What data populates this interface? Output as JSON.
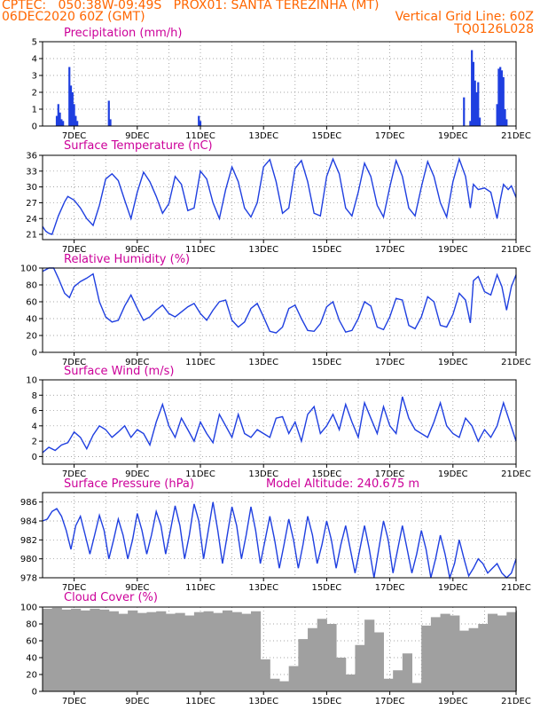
{
  "header": {
    "line1_left": "CPTEC:   050:38W-09:49S   PROX01: SANTA TEREZINHA (MT)",
    "line2_left": "06DEC2020 60Z (GMT)",
    "line2_right": "Vertical Grid Line: 60Z",
    "line3_right": "TQ0126L028"
  },
  "colors": {
    "header": "#ff6600",
    "panel_title": "#cc0099",
    "line": "#1f3fe0",
    "cloud": "#a0a0a0",
    "grid": "#888888"
  },
  "chart_data": [
    {
      "id": "precip",
      "type": "bar",
      "title": "Precipitation (mm/h)",
      "ylim": [
        0,
        5
      ],
      "yticks": [
        0,
        1,
        2,
        3,
        4,
        5
      ],
      "xlim": [
        6.0,
        21.0
      ],
      "xticks": [
        "7DEC",
        "9DEC",
        "11DEC",
        "13DEC",
        "15DEC",
        "17DEC",
        "19DEC",
        "21DEC"
      ],
      "xtick_values": [
        7,
        9,
        11,
        13,
        15,
        17,
        19,
        21
      ],
      "x": [
        6.45,
        6.5,
        6.55,
        6.6,
        6.65,
        6.85,
        6.9,
        6.95,
        7.0,
        7.05,
        7.1,
        8.1,
        8.15,
        10.95,
        11.0,
        19.35,
        19.55,
        19.6,
        19.65,
        19.7,
        19.75,
        19.8,
        19.85,
        20.4,
        20.45,
        20.5,
        20.55,
        20.6,
        20.65,
        20.7
      ],
      "values": [
        0.6,
        1.3,
        0.8,
        0.4,
        0.3,
        3.5,
        2.4,
        2.0,
        1.3,
        0.6,
        0.3,
        1.5,
        0.4,
        0.6,
        0.3,
        1.7,
        0.3,
        4.5,
        3.8,
        2.7,
        2.0,
        2.6,
        0.5,
        1.3,
        3.4,
        3.5,
        3.3,
        2.9,
        1.0,
        0.4
      ]
    },
    {
      "id": "temp",
      "type": "line",
      "title": "Surface Temperature (nC)",
      "ylim": [
        20,
        36
      ],
      "yticks": [
        21,
        24,
        27,
        30,
        33,
        36
      ],
      "xlim": [
        6.0,
        21.0
      ],
      "xticks": [
        "7DEC",
        "9DEC",
        "11DEC",
        "13DEC",
        "15DEC",
        "17DEC",
        "19DEC",
        "21DEC"
      ],
      "x": [
        6.0,
        6.1,
        6.2,
        6.3,
        6.5,
        6.7,
        6.8,
        7.0,
        7.2,
        7.4,
        7.6,
        7.8,
        8.0,
        8.2,
        8.4,
        8.6,
        8.8,
        9.0,
        9.2,
        9.4,
        9.6,
        9.8,
        10.0,
        10.2,
        10.4,
        10.6,
        10.8,
        11.0,
        11.2,
        11.4,
        11.6,
        11.8,
        12.0,
        12.2,
        12.4,
        12.6,
        12.8,
        13.0,
        13.2,
        13.4,
        13.6,
        13.8,
        14.0,
        14.2,
        14.4,
        14.6,
        14.8,
        15.0,
        15.2,
        15.4,
        15.6,
        15.8,
        16.0,
        16.2,
        16.4,
        16.6,
        16.8,
        17.0,
        17.2,
        17.4,
        17.6,
        17.8,
        18.0,
        18.2,
        18.4,
        18.6,
        18.8,
        19.0,
        19.2,
        19.4,
        19.55,
        19.65,
        19.8,
        20.0,
        20.2,
        20.4,
        20.5,
        20.6,
        20.75,
        20.85,
        21.0
      ],
      "values": [
        22.5,
        21.6,
        21.2,
        21.0,
        24.5,
        27.2,
        28.2,
        27.5,
        26.0,
        24.0,
        22.7,
        26.5,
        31.5,
        32.5,
        31.2,
        27.5,
        24.0,
        29.0,
        32.8,
        31.0,
        28.2,
        25.0,
        26.8,
        32.0,
        30.5,
        25.5,
        26.0,
        33.0,
        31.5,
        27.0,
        24.0,
        29.5,
        33.8,
        31.0,
        26.0,
        24.3,
        27.0,
        33.8,
        35.2,
        31.0,
        25.0,
        26.0,
        33.5,
        35.0,
        31.0,
        25.0,
        24.5,
        32.0,
        35.3,
        32.5,
        26.0,
        24.5,
        29.0,
        34.5,
        32.0,
        26.5,
        24.3,
        30.0,
        35.0,
        32.0,
        26.0,
        24.5,
        30.0,
        34.8,
        32.0,
        27.0,
        24.3,
        31.0,
        35.3,
        32.0,
        26.0,
        30.5,
        29.5,
        29.8,
        29.0,
        24.0,
        27.5,
        30.5,
        29.5,
        30.2,
        28.0
      ]
    },
    {
      "id": "rh",
      "type": "line",
      "title": "Relative Humidity (%)",
      "ylim": [
        0,
        100
      ],
      "yticks": [
        0,
        20,
        40,
        60,
        80,
        100
      ],
      "xlim": [
        6.0,
        21.0
      ],
      "xticks": [
        "7DEC",
        "9DEC",
        "11DEC",
        "13DEC",
        "15DEC",
        "17DEC",
        "19DEC",
        "21DEC"
      ],
      "x": [
        6.0,
        6.1,
        6.2,
        6.35,
        6.5,
        6.7,
        6.85,
        7.0,
        7.2,
        7.4,
        7.6,
        7.8,
        8.0,
        8.2,
        8.4,
        8.6,
        8.8,
        9.0,
        9.2,
        9.4,
        9.6,
        9.8,
        10.0,
        10.2,
        10.4,
        10.6,
        10.8,
        11.0,
        11.2,
        11.4,
        11.6,
        11.8,
        12.0,
        12.2,
        12.4,
        12.6,
        12.8,
        13.0,
        13.2,
        13.4,
        13.6,
        13.8,
        14.0,
        14.2,
        14.4,
        14.6,
        14.8,
        15.0,
        15.2,
        15.4,
        15.6,
        15.8,
        16.0,
        16.2,
        16.4,
        16.6,
        16.8,
        17.0,
        17.2,
        17.4,
        17.6,
        17.8,
        18.0,
        18.2,
        18.4,
        18.6,
        18.8,
        19.0,
        19.2,
        19.4,
        19.55,
        19.65,
        19.8,
        20.0,
        20.2,
        20.4,
        20.55,
        20.7,
        20.85,
        21.0
      ],
      "values": [
        96,
        98,
        100,
        100,
        88,
        70,
        65,
        78,
        84,
        88,
        93,
        60,
        42,
        36,
        38,
        55,
        68,
        52,
        38,
        42,
        50,
        56,
        46,
        42,
        48,
        54,
        58,
        46,
        38,
        50,
        60,
        62,
        38,
        30,
        36,
        52,
        58,
        42,
        25,
        23,
        30,
        52,
        56,
        40,
        26,
        25,
        34,
        54,
        60,
        38,
        24,
        26,
        40,
        60,
        55,
        30,
        27,
        42,
        64,
        62,
        32,
        28,
        42,
        66,
        60,
        32,
        30,
        45,
        70,
        62,
        35,
        85,
        90,
        72,
        68,
        92,
        78,
        50,
        78,
        92
      ]
    },
    {
      "id": "wind",
      "type": "line",
      "title": "Surface Wind (m/s)",
      "ylim": [
        -1,
        10
      ],
      "yticks": [
        0,
        2,
        4,
        6,
        8,
        10
      ],
      "xlim": [
        6.0,
        21.0
      ],
      "xticks": [
        "7DEC",
        "9DEC",
        "11DEC",
        "13DEC",
        "15DEC",
        "17DEC",
        "19DEC",
        "21DEC"
      ],
      "x": [
        6.0,
        6.2,
        6.4,
        6.6,
        6.8,
        7.0,
        7.2,
        7.4,
        7.6,
        7.8,
        8.0,
        8.2,
        8.4,
        8.6,
        8.8,
        9.0,
        9.2,
        9.4,
        9.6,
        9.8,
        10.0,
        10.2,
        10.4,
        10.6,
        10.8,
        11.0,
        11.2,
        11.4,
        11.6,
        11.8,
        12.0,
        12.2,
        12.4,
        12.6,
        12.8,
        13.0,
        13.2,
        13.4,
        13.6,
        13.8,
        14.0,
        14.2,
        14.4,
        14.6,
        14.8,
        15.0,
        15.2,
        15.4,
        15.6,
        15.8,
        16.0,
        16.2,
        16.4,
        16.6,
        16.8,
        17.0,
        17.2,
        17.4,
        17.6,
        17.8,
        18.0,
        18.2,
        18.4,
        18.6,
        18.8,
        19.0,
        19.2,
        19.4,
        19.6,
        19.8,
        20.0,
        20.2,
        20.4,
        20.6,
        20.8,
        21.0
      ],
      "values": [
        0.5,
        1.2,
        0.8,
        1.5,
        1.8,
        3.2,
        2.5,
        1.0,
        2.8,
        4.0,
        3.5,
        2.5,
        3.2,
        4.0,
        2.5,
        3.5,
        3.0,
        1.5,
        4.5,
        6.8,
        4.0,
        2.5,
        5.0,
        3.5,
        2.0,
        4.5,
        3.0,
        1.8,
        5.5,
        4.0,
        2.5,
        5.5,
        3.0,
        2.5,
        3.5,
        3.0,
        2.5,
        5.0,
        5.2,
        3.0,
        4.5,
        2.0,
        5.5,
        6.5,
        3.0,
        4.0,
        5.5,
        3.5,
        6.8,
        4.5,
        2.5,
        7.0,
        5.0,
        3.0,
        6.5,
        4.0,
        3.0,
        7.8,
        5.0,
        3.5,
        3.0,
        2.5,
        4.5,
        7.0,
        4.0,
        3.0,
        2.5,
        5.0,
        4.0,
        2.0,
        3.5,
        2.5,
        4.0,
        7.0,
        4.5,
        2.0
      ]
    },
    {
      "id": "pres",
      "type": "line",
      "title": "Surface Pressure (hPa)",
      "annotation": "Model Altitude: 240.675 m",
      "ylim": [
        978,
        987
      ],
      "yticks": [
        978,
        980,
        982,
        984,
        986
      ],
      "xlim": [
        6.0,
        21.0
      ],
      "xticks": [
        "7DEC",
        "9DEC",
        "11DEC",
        "13DEC",
        "15DEC",
        "17DEC",
        "19DEC",
        "21DEC"
      ],
      "x": [
        6.0,
        6.15,
        6.3,
        6.45,
        6.6,
        6.75,
        6.9,
        7.05,
        7.2,
        7.35,
        7.5,
        7.65,
        7.8,
        7.95,
        8.1,
        8.25,
        8.4,
        8.55,
        8.7,
        8.85,
        9.0,
        9.15,
        9.3,
        9.45,
        9.6,
        9.75,
        9.9,
        10.05,
        10.2,
        10.35,
        10.5,
        10.65,
        10.8,
        10.95,
        11.1,
        11.25,
        11.4,
        11.55,
        11.7,
        11.85,
        12.0,
        12.15,
        12.3,
        12.45,
        12.6,
        12.75,
        12.9,
        13.05,
        13.2,
        13.35,
        13.5,
        13.65,
        13.8,
        13.95,
        14.1,
        14.25,
        14.4,
        14.55,
        14.7,
        14.85,
        15.0,
        15.15,
        15.3,
        15.45,
        15.6,
        15.75,
        15.9,
        16.05,
        16.2,
        16.35,
        16.5,
        16.65,
        16.8,
        16.95,
        17.1,
        17.25,
        17.4,
        17.55,
        17.7,
        17.85,
        18.0,
        18.15,
        18.3,
        18.45,
        18.6,
        18.75,
        18.9,
        19.05,
        19.2,
        19.35,
        19.5,
        19.65,
        19.8,
        19.95,
        20.1,
        20.25,
        20.4,
        20.55,
        20.7,
        20.85,
        21.0
      ],
      "values": [
        984.0,
        984.2,
        985.0,
        985.3,
        984.5,
        983.0,
        981.0,
        983.5,
        984.5,
        982.5,
        980.5,
        982.5,
        984.6,
        983.0,
        980.0,
        982.0,
        984.2,
        982.5,
        980.0,
        982.0,
        984.8,
        983.0,
        980.5,
        982.5,
        985.0,
        983.5,
        980.5,
        983.0,
        985.6,
        983.5,
        980.0,
        982.5,
        985.8,
        984.0,
        980.0,
        983.0,
        986.0,
        983.0,
        979.5,
        982.5,
        985.5,
        983.5,
        980.0,
        982.5,
        985.5,
        983.0,
        979.5,
        982.0,
        984.5,
        982.0,
        979.0,
        981.5,
        984.2,
        982.0,
        979.0,
        981.5,
        984.5,
        982.5,
        979.5,
        981.5,
        984.0,
        982.0,
        979.0,
        981.5,
        983.5,
        981.0,
        978.5,
        981.0,
        983.5,
        981.0,
        978.0,
        981.0,
        984.0,
        982.0,
        978.5,
        981.0,
        983.5,
        981.0,
        978.5,
        980.5,
        983.0,
        981.0,
        978.0,
        980.0,
        982.5,
        980.5,
        978.0,
        979.5,
        982.0,
        980.0,
        978.2,
        979.0,
        980.0,
        979.5,
        978.5,
        979.0,
        979.5,
        978.5,
        978.0,
        978.5,
        980.0
      ]
    },
    {
      "id": "cloud",
      "type": "bar",
      "title": "Cloud Cover (%)",
      "ylim": [
        0,
        100
      ],
      "yticks": [
        0,
        20,
        40,
        60,
        80,
        100
      ],
      "xlim": [
        6.0,
        21.0
      ],
      "xticks": [
        "7DEC",
        "9DEC",
        "11DEC",
        "13DEC",
        "15DEC",
        "17DEC",
        "19DEC",
        "21DEC"
      ],
      "x": [
        6.0,
        6.3,
        6.6,
        6.9,
        7.2,
        7.5,
        7.8,
        8.1,
        8.4,
        8.7,
        9.0,
        9.3,
        9.6,
        9.9,
        10.2,
        10.5,
        10.8,
        11.1,
        11.4,
        11.7,
        12.0,
        12.3,
        12.6,
        12.9,
        13.2,
        13.5,
        13.8,
        14.1,
        14.4,
        14.7,
        15.0,
        15.3,
        15.6,
        15.9,
        16.2,
        16.5,
        16.8,
        17.1,
        17.4,
        17.7,
        18.0,
        18.3,
        18.6,
        18.9,
        19.2,
        19.5,
        19.8,
        20.1,
        20.4,
        20.7,
        21.0
      ],
      "values": [
        98,
        99,
        97,
        98,
        96,
        98,
        97,
        95,
        92,
        96,
        93,
        94,
        95,
        92,
        93,
        90,
        94,
        95,
        93,
        96,
        94,
        92,
        95,
        38,
        15,
        12,
        30,
        62,
        75,
        86,
        80,
        40,
        20,
        55,
        85,
        70,
        15,
        25,
        45,
        10,
        78,
        88,
        92,
        90,
        72,
        75,
        80,
        92,
        90,
        94,
        96
      ]
    }
  ]
}
